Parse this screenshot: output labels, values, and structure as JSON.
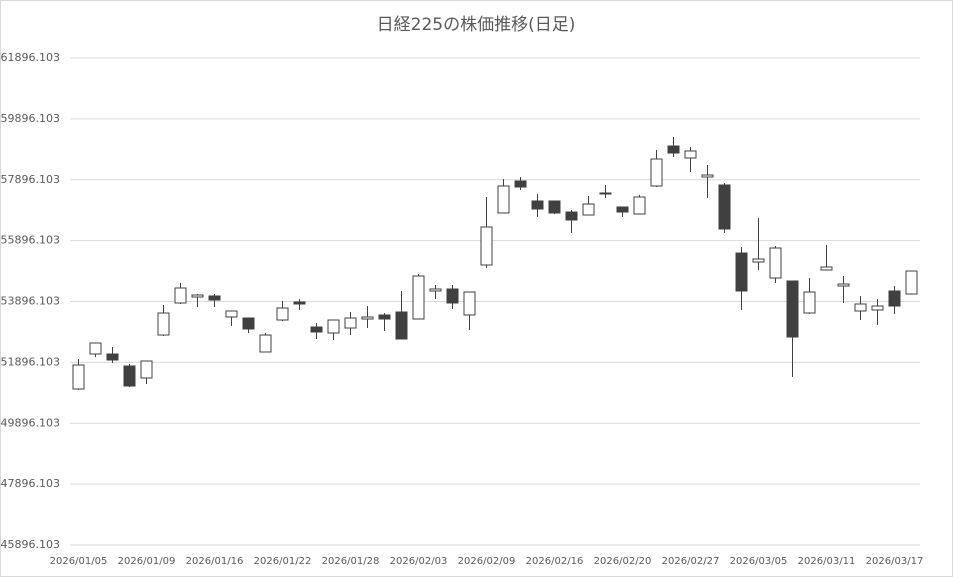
{
  "chart_data": {
    "type": "candlestick",
    "title": "日経225の株価推移(日足)",
    "categories": [
      "2026/01/05",
      null,
      null,
      null,
      "2026/01/09",
      null,
      null,
      null,
      "2026/01/16",
      null,
      null,
      null,
      "2026/01/22",
      null,
      null,
      null,
      "2026/01/28",
      null,
      null,
      null,
      "2026/02/03",
      null,
      null,
      null,
      "2026/02/09",
      null,
      null,
      null,
      "2026/02/16",
      null,
      null,
      null,
      "2026/02/20",
      null,
      null,
      null,
      "2026/02/27",
      null,
      null,
      null,
      "2026/03/05",
      null,
      null,
      null,
      "2026/03/11",
      null,
      null,
      null,
      "2026/03/17",
      null
    ],
    "open": [
      51021,
      52171,
      52171,
      51777,
      51383,
      52795,
      53847,
      54044,
      54077,
      53387,
      53354,
      52237,
      53288,
      53880,
      53058,
      52861,
      53025,
      53321,
      53453,
      53551,
      53321,
      54241,
      54307,
      53453,
      55095,
      56804,
      57855,
      57198,
      57198,
      56836,
      56738,
      57428,
      57001,
      56771,
      57691,
      59005,
      58611,
      57986,
      57724,
      55489,
      55194,
      54668,
      54570,
      53518,
      54931,
      54405,
      53584,
      53617,
      54241,
      54142
    ],
    "high": [
      52007,
      52533,
      52401,
      51843,
      51941,
      53781,
      54504,
      54142,
      54142,
      53584,
      53354,
      52861,
      53912,
      53978,
      53190,
      53288,
      53551,
      53748,
      53518,
      54241,
      54800,
      54438,
      54438,
      54208,
      57329,
      57921,
      57986,
      57428,
      57198,
      56902,
      57362,
      57724,
      57001,
      57395,
      58873,
      59301,
      58972,
      58381,
      57789,
      55687,
      56639,
      55719,
      54570,
      54668,
      55752,
      54734,
      54077,
      53978,
      54405,
      54898
    ],
    "low": [
      50988,
      52073,
      51876,
      51087,
      51186,
      52763,
      53814,
      53715,
      53715,
      53091,
      52861,
      52237,
      53255,
      53617,
      52664,
      52631,
      52795,
      53025,
      52927,
      52664,
      53321,
      53978,
      53650,
      52960,
      54997,
      56804,
      57559,
      56672,
      56771,
      56147,
      56738,
      57296,
      56672,
      56771,
      57658,
      58643,
      58151,
      57296,
      56147,
      53617,
      54931,
      54504,
      51416,
      53485,
      54931,
      53847,
      53288,
      53124,
      53485,
      54142
    ],
    "close": [
      51810,
      52533,
      51974,
      51120,
      51941,
      53518,
      54340,
      54110,
      53945,
      53584,
      52993,
      52795,
      53682,
      53814,
      52894,
      53288,
      53354,
      53387,
      53321,
      52664,
      54734,
      54307,
      53847,
      54208,
      56344,
      57691,
      57658,
      56935,
      56804,
      56574,
      57099,
      57461,
      56836,
      57329,
      58578,
      58775,
      58841,
      58052,
      56278,
      54241,
      55292,
      55654,
      52730,
      54208,
      55030,
      54471,
      53814,
      53748,
      53748,
      54898
    ],
    "up_color": "#ffffff",
    "down_color": "#404040",
    "line_color": "#404040",
    "ylim": [
      45896.103,
      61896.103
    ],
    "yticks": [
      45896.103,
      47896.103,
      49896.103,
      51896.103,
      53896.103,
      55896.103,
      57896.103,
      59896.103,
      61896.103
    ],
    "grid": true
  }
}
